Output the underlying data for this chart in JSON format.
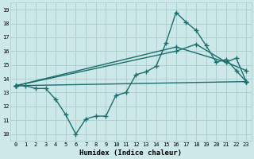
{
  "title": "",
  "xlabel": "Humidex (Indice chaleur)",
  "ylabel": "",
  "xlim": [
    -0.5,
    23.5
  ],
  "ylim": [
    9.5,
    19.5
  ],
  "yticks": [
    10,
    11,
    12,
    13,
    14,
    15,
    16,
    17,
    18,
    19
  ],
  "xticks": [
    0,
    1,
    2,
    3,
    4,
    5,
    6,
    7,
    8,
    9,
    10,
    11,
    12,
    13,
    14,
    15,
    16,
    17,
    18,
    19,
    20,
    21,
    22,
    23
  ],
  "bg_color": "#cde8e8",
  "grid_color": "#aacccc",
  "line_color": "#1a6e6e",
  "line_width": 1.0,
  "marker": "+",
  "marker_size": 4,
  "series1": [
    [
      0,
      13.5
    ],
    [
      1,
      13.5
    ],
    [
      2,
      13.3
    ],
    [
      3,
      13.3
    ],
    [
      4,
      12.5
    ],
    [
      5,
      11.4
    ],
    [
      6,
      10.0
    ],
    [
      7,
      11.1
    ],
    [
      8,
      11.3
    ],
    [
      9,
      11.3
    ],
    [
      10,
      12.8
    ],
    [
      11,
      13.0
    ],
    [
      12,
      14.3
    ],
    [
      13,
      14.5
    ],
    [
      14,
      14.9
    ],
    [
      15,
      16.6
    ],
    [
      16,
      18.8
    ],
    [
      17,
      18.1
    ],
    [
      18,
      17.5
    ],
    [
      19,
      16.4
    ],
    [
      20,
      15.2
    ],
    [
      21,
      15.4
    ],
    [
      22,
      14.6
    ],
    [
      23,
      13.8
    ]
  ],
  "series2": [
    [
      0,
      13.5
    ],
    [
      23,
      13.8
    ]
  ],
  "series3": [
    [
      0,
      13.5
    ],
    [
      16,
      16.3
    ],
    [
      21,
      15.2
    ],
    [
      23,
      14.6
    ]
  ],
  "series4": [
    [
      0,
      13.5
    ],
    [
      16,
      16.0
    ],
    [
      18,
      16.5
    ],
    [
      21,
      15.2
    ],
    [
      22,
      15.5
    ],
    [
      23,
      13.8
    ]
  ]
}
